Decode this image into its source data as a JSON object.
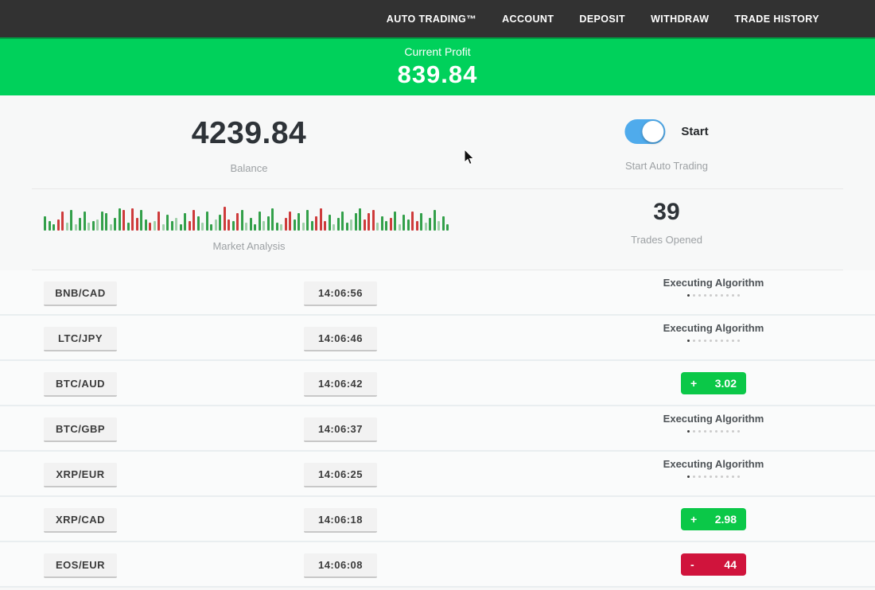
{
  "nav": {
    "items": [
      "AUTO TRADING™",
      "ACCOUNT",
      "DEPOSIT",
      "WITHDRAW",
      "TRADE HISTORY"
    ]
  },
  "profit_banner": {
    "label": "Current Profit",
    "value": "839.84"
  },
  "account": {
    "balance_value": "4239.84",
    "balance_label": "Balance",
    "toggle_label": "Start",
    "toggle_caption": "Start Auto Trading",
    "toggle_on": true
  },
  "market": {
    "label": "Market Analysis",
    "bars": [
      "g18",
      "g12",
      "g8",
      "r14",
      "r24",
      "g10l",
      "g26",
      "g8l",
      "g16",
      "g24",
      "g10l",
      "g12",
      "g14l",
      "g24",
      "g22",
      "g8l",
      "g16",
      "g28",
      "r26",
      "g10",
      "r28",
      "r16",
      "g26",
      "g14",
      "r10",
      "g12l",
      "r24",
      "g8l",
      "g20",
      "g12",
      "g16l",
      "g8",
      "g22",
      "r12",
      "r26",
      "g18",
      "g10l",
      "g24",
      "g8",
      "g14l",
      "g20",
      "r30",
      "r14",
      "g12",
      "r22",
      "g26",
      "g10l",
      "g16",
      "g8",
      "g24",
      "g12l",
      "g18",
      "g28",
      "g10",
      "g8l",
      "r16",
      "r24",
      "g14",
      "g22",
      "g10l",
      "g26",
      "g12",
      "r18",
      "r28",
      "r12",
      "g20",
      "g8l",
      "g16",
      "g24",
      "g10",
      "g14l",
      "g22",
      "g28",
      "r14",
      "r22",
      "r26",
      "g10l",
      "g18",
      "g12",
      "r16",
      "g24",
      "g8l",
      "g20",
      "g14",
      "r24",
      "r12",
      "g22",
      "g10l",
      "g16",
      "g26",
      "g12l",
      "g18",
      "g8"
    ]
  },
  "trades_opened": {
    "value": "39",
    "label": "Trades Opened"
  },
  "trades": {
    "executing_label": "Executing Algorithm",
    "dots_total": 10,
    "dots_active": 1,
    "rows": [
      {
        "pair": "BNB/CAD",
        "time": "14:06:56",
        "status": "executing"
      },
      {
        "pair": "LTC/JPY",
        "time": "14:06:46",
        "status": "executing"
      },
      {
        "pair": "BTC/AUD",
        "time": "14:06:42",
        "status": "profit",
        "sign": "+",
        "value": "3.02"
      },
      {
        "pair": "BTC/GBP",
        "time": "14:06:37",
        "status": "executing"
      },
      {
        "pair": "XRP/EUR",
        "time": "14:06:25",
        "status": "executing"
      },
      {
        "pair": "XRP/CAD",
        "time": "14:06:18",
        "status": "profit",
        "sign": "+",
        "value": "2.98"
      },
      {
        "pair": "EOS/EUR",
        "time": "14:06:08",
        "status": "loss",
        "sign": "-",
        "value": "44"
      }
    ]
  },
  "colors": {
    "nav_bg": "#323232",
    "banner_green": "#00D15B",
    "profit_badge": "#0BC848",
    "loss_badge": "#D0143C",
    "toggle_blue": "#4FABEC",
    "bar_green": "#33A04A",
    "bar_red": "#CE3B3B"
  }
}
